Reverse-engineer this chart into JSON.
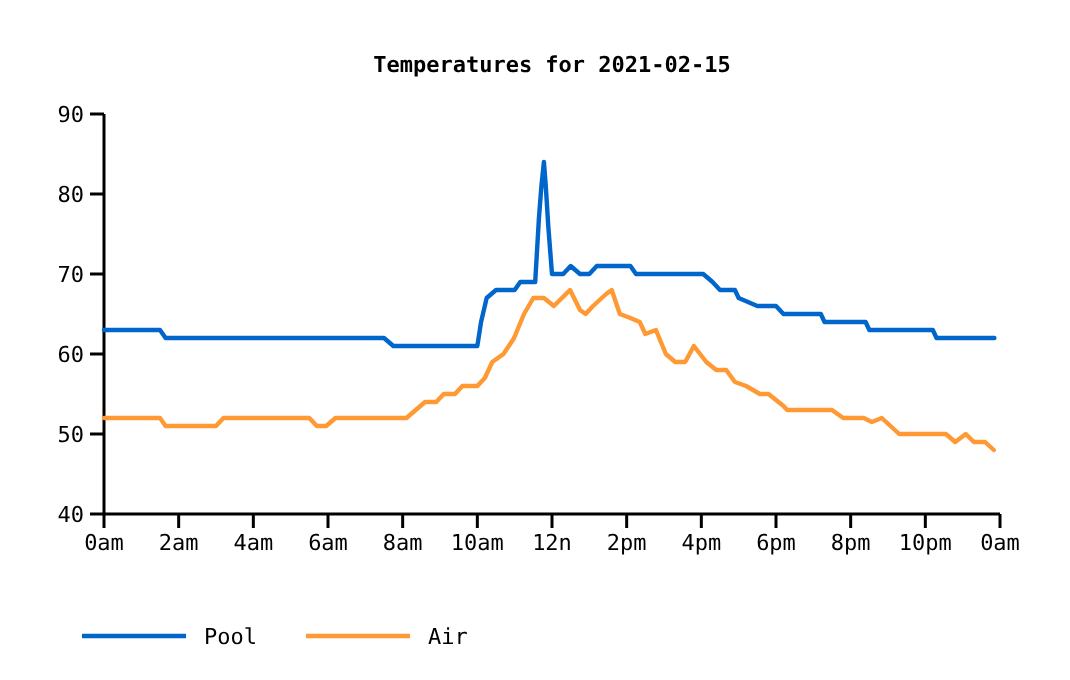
{
  "chart_data": {
    "type": "line",
    "title": "Temperatures for 2021-02-15",
    "xlim": [
      "2021-02-15T00:00",
      "2021-02-16T00:00"
    ],
    "xticks": [
      {
        "value": "2021-02-15T00:00",
        "label": "0am"
      },
      {
        "value": "2021-02-15T02:00",
        "label": "2am"
      },
      {
        "value": "2021-02-15T04:00",
        "label": "4am"
      },
      {
        "value": "2021-02-15T06:00",
        "label": "6am"
      },
      {
        "value": "2021-02-15T08:00",
        "label": "8am"
      },
      {
        "value": "2021-02-15T10:00",
        "label": "10am"
      },
      {
        "value": "2021-02-15T12:00",
        "label": "12n"
      },
      {
        "value": "2021-02-15T14:00",
        "label": "2pm"
      },
      {
        "value": "2021-02-15T16:00",
        "label": "4pm"
      },
      {
        "value": "2021-02-15T18:00",
        "label": "6pm"
      },
      {
        "value": "2021-02-15T20:00",
        "label": "8pm"
      },
      {
        "value": "2021-02-15T22:00",
        "label": "10pm"
      },
      {
        "value": "2021-02-16T00:00",
        "label": "0am"
      }
    ],
    "ylim": [
      40,
      90
    ],
    "yticks": [
      40,
      50,
      60,
      70,
      80,
      90
    ],
    "legend": "bottom",
    "series": [
      {
        "name": "Pool",
        "color": "#0066cc",
        "x": [
          "2021-02-15T00:00",
          "2021-02-15T01:30",
          "2021-02-15T01:39",
          "2021-02-15T07:30",
          "2021-02-15T07:45",
          "2021-02-15T10:00",
          "2021-02-15T10:06",
          "2021-02-15T10:15",
          "2021-02-15T10:30",
          "2021-02-15T11:00",
          "2021-02-15T11:09",
          "2021-02-15T11:30",
          "2021-02-15T11:33",
          "2021-02-15T11:39",
          "2021-02-15T11:43",
          "2021-02-15T11:47",
          "2021-02-15T11:50",
          "2021-02-15T11:54",
          "2021-02-15T12:00",
          "2021-02-15T12:18",
          "2021-02-15T12:30",
          "2021-02-15T12:45",
          "2021-02-15T13:00",
          "2021-02-15T13:12",
          "2021-02-15T14:06",
          "2021-02-15T14:15",
          "2021-02-15T16:03",
          "2021-02-15T16:18",
          "2021-02-15T16:30",
          "2021-02-15T16:54",
          "2021-02-15T17:00",
          "2021-02-15T17:30",
          "2021-02-15T18:00",
          "2021-02-15T18:12",
          "2021-02-15T19:12",
          "2021-02-15T19:18",
          "2021-02-15T20:24",
          "2021-02-15T20:30",
          "2021-02-15T22:12",
          "2021-02-15T22:18",
          "2021-02-15T23:51"
        ],
        "values": [
          63,
          63,
          62,
          62,
          61,
          61,
          64,
          67,
          68,
          68,
          69,
          69,
          69,
          77,
          81,
          84,
          81,
          76,
          70,
          70,
          71,
          70,
          70,
          71,
          71,
          70,
          70,
          69,
          68,
          68,
          67,
          66,
          66,
          65,
          65,
          64,
          64,
          63,
          63,
          62,
          62
        ]
      },
      {
        "name": "Air",
        "color": "#ff9933",
        "x": [
          "2021-02-15T00:00",
          "2021-02-15T01:30",
          "2021-02-15T01:39",
          "2021-02-15T03:00",
          "2021-02-15T03:12",
          "2021-02-15T05:30",
          "2021-02-15T05:42",
          "2021-02-15T05:57",
          "2021-02-15T06:12",
          "2021-02-15T08:06",
          "2021-02-15T08:21",
          "2021-02-15T08:36",
          "2021-02-15T08:54",
          "2021-02-15T09:06",
          "2021-02-15T09:24",
          "2021-02-15T09:36",
          "2021-02-15T10:00",
          "2021-02-15T10:12",
          "2021-02-15T10:24",
          "2021-02-15T10:42",
          "2021-02-15T10:59",
          "2021-02-15T11:15",
          "2021-02-15T11:30",
          "2021-02-15T11:47",
          "2021-02-15T12:03",
          "2021-02-15T12:29",
          "2021-02-15T12:45",
          "2021-02-15T12:54",
          "2021-02-15T13:06",
          "2021-02-15T13:27",
          "2021-02-15T13:36",
          "2021-02-15T13:49",
          "2021-02-15T14:06",
          "2021-02-15T14:21",
          "2021-02-15T14:30",
          "2021-02-15T14:47",
          "2021-02-15T15:03",
          "2021-02-15T15:18",
          "2021-02-15T15:34",
          "2021-02-15T15:48",
          "2021-02-15T16:08",
          "2021-02-15T16:24",
          "2021-02-15T16:40",
          "2021-02-15T16:54",
          "2021-02-15T17:12",
          "2021-02-15T17:34",
          "2021-02-15T17:48",
          "2021-02-15T18:12",
          "2021-02-15T18:18",
          "2021-02-15T19:30",
          "2021-02-15T19:48",
          "2021-02-15T20:21",
          "2021-02-15T20:34",
          "2021-02-15T20:50",
          "2021-02-15T21:18",
          "2021-02-15T22:33",
          "2021-02-15T22:48",
          "2021-02-15T23:05",
          "2021-02-15T23:18",
          "2021-02-15T23:36",
          "2021-02-15T23:50"
        ],
        "values": [
          52,
          52,
          51,
          51,
          52,
          52,
          51,
          51,
          52,
          52,
          53,
          54,
          54,
          55,
          55,
          56,
          56,
          57,
          59,
          60,
          62,
          65,
          67,
          67,
          66,
          68,
          65.5,
          65,
          66,
          67.5,
          68,
          65,
          64.5,
          64,
          62.5,
          63,
          60,
          59,
          59,
          61,
          59,
          58,
          58,
          56.5,
          56,
          55,
          55,
          53.5,
          53,
          53,
          52,
          52,
          51.5,
          52,
          50,
          50,
          49,
          50,
          49,
          49,
          48
        ]
      }
    ]
  }
}
